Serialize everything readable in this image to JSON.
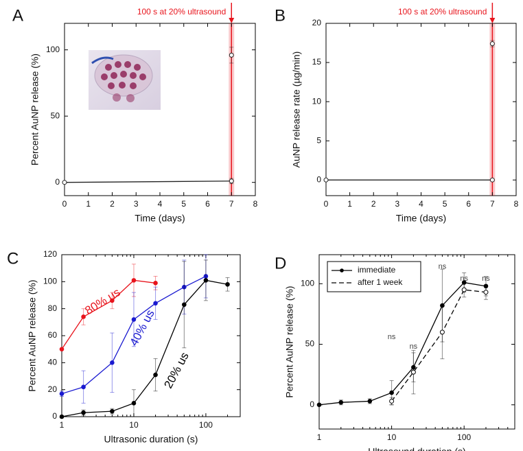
{
  "chart_data": [
    {
      "type": "line",
      "label": "A",
      "xlabel": "Time (days)",
      "ylabel": "Percent AuNP release (%)",
      "xlim": [
        0,
        8
      ],
      "ylim": [
        -10,
        120
      ],
      "xticks": [
        0,
        1,
        2,
        3,
        4,
        5,
        6,
        7,
        8
      ],
      "yticks": [
        0,
        50,
        100
      ],
      "annotation": {
        "text": "100 s at 20% ultrasound",
        "x": 7,
        "color": "#e8141c"
      },
      "series": [
        {
          "color": "#222222",
          "marker": "open",
          "x": [
            0,
            7
          ],
          "y": [
            0,
            1
          ],
          "errors": [
            0.5,
            2
          ]
        },
        {
          "color": "#222222",
          "marker": "open",
          "line": false,
          "x": [
            7
          ],
          "y": [
            96
          ],
          "errors": [
            6
          ]
        }
      ]
    },
    {
      "type": "line",
      "label": "B",
      "xlabel": "Time (days)",
      "ylabel": "AuNP release rate (µg/min)",
      "xlim": [
        0,
        8
      ],
      "ylim": [
        -2,
        20
      ],
      "xticks": [
        0,
        1,
        2,
        3,
        4,
        5,
        6,
        7,
        8
      ],
      "yticks": [
        0,
        5,
        10,
        15,
        20
      ],
      "annotation": {
        "text": "100 s at 20% ultrasound",
        "x": 7,
        "color": "#e8141c"
      },
      "series": [
        {
          "color": "#222222",
          "marker": "open",
          "x": [
            0,
            7
          ],
          "y": [
            0,
            0
          ],
          "errors": [
            0,
            0
          ]
        },
        {
          "color": "#222222",
          "marker": "open",
          "line": false,
          "x": [
            7
          ],
          "y": [
            17.4
          ],
          "errors": [
            0.4
          ]
        }
      ]
    },
    {
      "type": "line",
      "label": "C",
      "xlabel": "Ultrasonic duration (s)",
      "ylabel": "Percent AuNP release (%)",
      "xscale": "log",
      "xlim": [
        1,
        300
      ],
      "ylim": [
        0,
        120
      ],
      "xticks": [
        1,
        10,
        100
      ],
      "yticks": [
        0,
        20,
        40,
        60,
        80,
        100,
        120
      ],
      "series_labels": true,
      "series": [
        {
          "name": "80% us",
          "color": "#e8141c",
          "marker": "filled",
          "x": [
            1,
            2,
            5,
            10,
            20
          ],
          "y": [
            50,
            74,
            86,
            101,
            99
          ],
          "errors": [
            0,
            6,
            6,
            12,
            5
          ]
        },
        {
          "name": "40% us",
          "color": "#1a1ad0",
          "marker": "filled",
          "x": [
            1,
            2,
            5,
            10,
            20,
            50,
            100
          ],
          "y": [
            17,
            22,
            40,
            72,
            84,
            96,
            104
          ],
          "errors": [
            2,
            12,
            22,
            20,
            12,
            20,
            16
          ]
        },
        {
          "name": "20% us",
          "color": "#000000",
          "marker": "filled",
          "x": [
            1,
            2,
            5,
            10,
            20,
            50,
            100,
            200
          ],
          "y": [
            0,
            3,
            4,
            10,
            31,
            83,
            101,
            98
          ],
          "errors": [
            0,
            2,
            2,
            10,
            12,
            32,
            15,
            5
          ]
        }
      ]
    },
    {
      "type": "line",
      "label": "D",
      "xlabel": "Ultrasound duration (s)",
      "ylabel": "Percent AuNP release (%)",
      "xscale": "log",
      "xlim": [
        1,
        500
      ],
      "ylim": [
        -20,
        124
      ],
      "xticks": [
        1,
        10,
        100
      ],
      "yticks": [
        0,
        50,
        100
      ],
      "legend": "upper left",
      "series": [
        {
          "name": "immediate",
          "color": "#000000",
          "marker": "filled",
          "x": [
            1,
            2,
            5,
            10,
            20,
            50,
            100,
            200
          ],
          "y": [
            0,
            2,
            3,
            10,
            31,
            82,
            101,
            98
          ],
          "errors": [
            0,
            2,
            2,
            10,
            12,
            30,
            8,
            8
          ]
        },
        {
          "name": "after 1 week",
          "color": "#000000",
          "marker": "open",
          "dash": true,
          "x": [
            10,
            20,
            50,
            100,
            200
          ],
          "y": [
            3,
            27,
            60,
            95,
            93
          ],
          "errors": [
            3,
            18,
            22,
            6,
            6
          ]
        }
      ],
      "annotations": [
        {
          "text": "ns",
          "x": 10,
          "y": 56
        },
        {
          "text": "ns",
          "x": 20,
          "y": 48
        },
        {
          "text": "ns",
          "x": 50,
          "y": 114
        },
        {
          "text": "ns",
          "x": 100,
          "y": 104
        },
        {
          "text": "ns",
          "x": 200,
          "y": 104
        }
      ]
    }
  ]
}
